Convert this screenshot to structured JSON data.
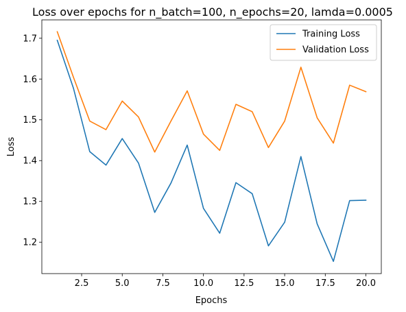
{
  "chart_data": {
    "type": "line",
    "title": "Loss over epochs for n_batch=100, n_epochs=20, lamda=0.0005",
    "xlabel": "Epochs",
    "ylabel": "Loss",
    "x": [
      1,
      2,
      3,
      4,
      5,
      6,
      7,
      8,
      9,
      10,
      11,
      12,
      13,
      14,
      15,
      16,
      17,
      18,
      19,
      20
    ],
    "xlim": [
      0.05,
      20.95
    ],
    "ylim": [
      1.123,
      1.745
    ],
    "xticks": [
      2.5,
      5.0,
      7.5,
      10.0,
      12.5,
      15.0,
      17.5,
      20.0
    ],
    "xtick_labels": [
      "2.5",
      "5.0",
      "7.5",
      "10.0",
      "12.5",
      "15.0",
      "17.5",
      "20.0"
    ],
    "yticks": [
      1.2,
      1.3,
      1.4,
      1.5,
      1.6,
      1.7
    ],
    "ytick_labels": [
      "1.2",
      "1.3",
      "1.4",
      "1.5",
      "1.6",
      "1.7"
    ],
    "grid": false,
    "legend_position": "top-right",
    "series": [
      {
        "name": "Training Loss",
        "color": "#1f77b4",
        "values": [
          1.695,
          1.577,
          1.422,
          1.389,
          1.454,
          1.394,
          1.273,
          1.345,
          1.438,
          1.283,
          1.222,
          1.346,
          1.319,
          1.191,
          1.249,
          1.41,
          1.245,
          1.153,
          1.302,
          1.303
        ]
      },
      {
        "name": "Validation Loss",
        "color": "#ff7f0e",
        "values": [
          1.716,
          1.604,
          1.497,
          1.476,
          1.546,
          1.507,
          1.421,
          1.497,
          1.571,
          1.465,
          1.425,
          1.538,
          1.52,
          1.432,
          1.497,
          1.629,
          1.505,
          1.443,
          1.585,
          1.569
        ]
      }
    ]
  }
}
